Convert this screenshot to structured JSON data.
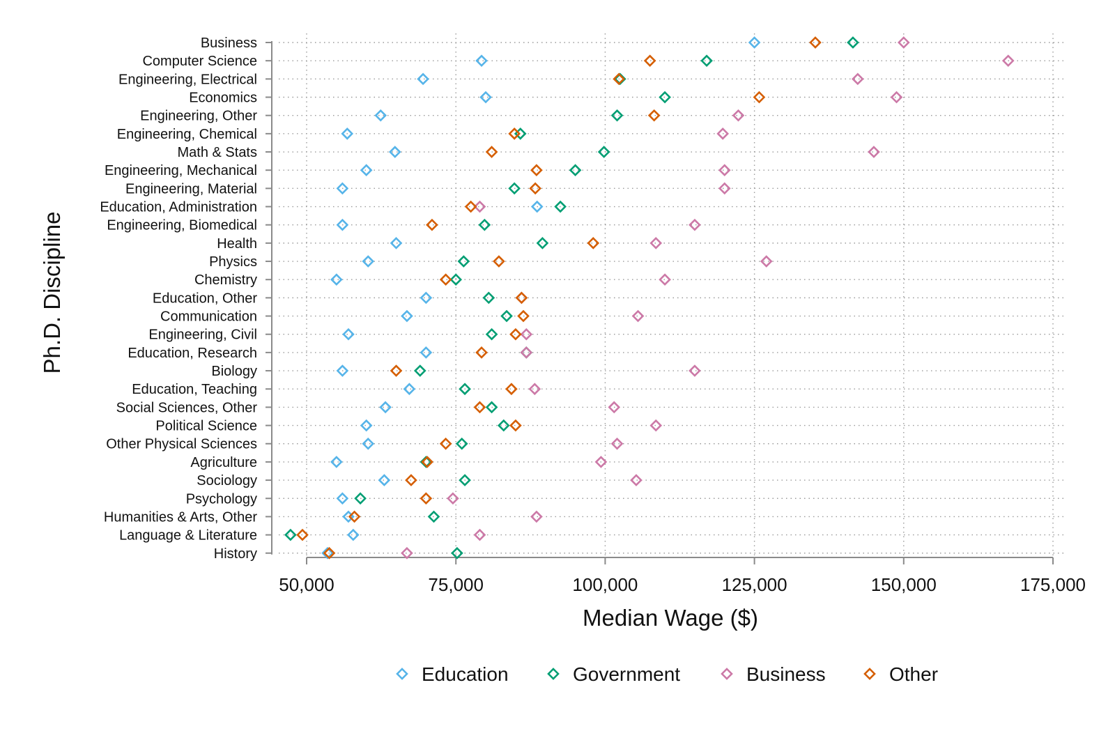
{
  "chart_data": {
    "type": "scatter",
    "xlabel": "Median Wage ($)",
    "ylabel": "Ph.D. Discipline",
    "xlim": [
      47500,
      177500
    ],
    "x_ticks": [
      50000,
      75000,
      100000,
      125000,
      150000,
      175000
    ],
    "x_tick_labels": [
      "50,000",
      "75,000",
      "100,000",
      "125,000",
      "150,000",
      "175,000"
    ],
    "grid": "dotted",
    "legend_position": "bottom",
    "marker": "hollow-diamond",
    "categories": [
      "Business",
      "Computer Science",
      "Engineering, Electrical",
      "Economics",
      "Engineering, Other",
      "Engineering, Chemical",
      "Math & Stats",
      "Engineering, Mechanical",
      "Engineering, Material",
      "Education, Administration",
      "Engineering, Biomedical",
      "Health",
      "Physics",
      "Chemistry",
      "Education, Other",
      "Communication",
      "Engineering, Civil",
      "Education, Research",
      "Biology",
      "Education, Teaching",
      "Social Sciences, Other",
      "Political Science",
      "Other Physical Sciences",
      "Agriculture",
      "Sociology",
      "Psychology",
      "Humanities & Arts, Other",
      "Language & Literature",
      "History"
    ],
    "series": [
      {
        "name": "Education",
        "color": "#56B4E9",
        "values": [
          125000,
          79300,
          69500,
          80000,
          62400,
          56800,
          64800,
          60000,
          56000,
          88600,
          56000,
          65000,
          60300,
          55000,
          70000,
          66800,
          57000,
          70000,
          56000,
          67200,
          63200,
          60000,
          60300,
          55000,
          63000,
          56000,
          57000,
          57800,
          53500
        ]
      },
      {
        "name": "Government",
        "color": "#009E73",
        "values": [
          141500,
          117000,
          102500,
          110000,
          102000,
          85800,
          99800,
          95000,
          84800,
          92500,
          79800,
          89500,
          76300,
          75000,
          80500,
          83500,
          81000,
          86800,
          69000,
          76500,
          81000,
          83000,
          76000,
          70000,
          76500,
          59000,
          71300,
          47300,
          75200
        ]
      },
      {
        "name": "Business",
        "color": "#CC79A7",
        "values": [
          150000,
          167500,
          142300,
          148800,
          122300,
          119700,
          145000,
          120000,
          120000,
          79000,
          115000,
          108500,
          127000,
          110000,
          86000,
          105500,
          86800,
          86800,
          115000,
          88200,
          101500,
          108500,
          102000,
          99300,
          105200,
          74500,
          88500,
          79000,
          66800
        ]
      },
      {
        "name": "Other",
        "color": "#D55E00",
        "values": [
          135200,
          107500,
          102300,
          125800,
          108200,
          84800,
          81000,
          88500,
          88300,
          77500,
          71000,
          98000,
          82200,
          73300,
          86000,
          86300,
          85000,
          79300,
          65000,
          84300,
          79000,
          85000,
          73300,
          70200,
          67500,
          70000,
          58000,
          49300,
          53800
        ]
      }
    ]
  }
}
